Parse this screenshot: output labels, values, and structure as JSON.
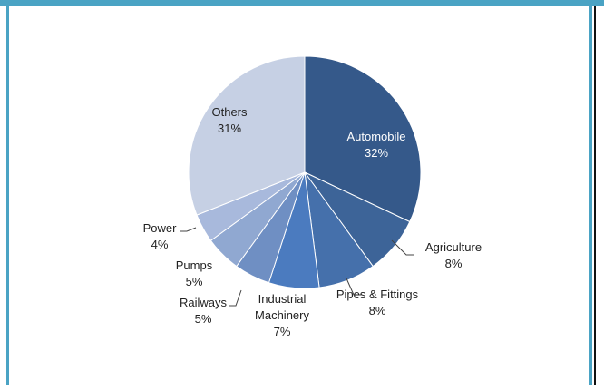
{
  "chart_data": {
    "type": "pie",
    "title": "",
    "slices": [
      {
        "label": "Automobile",
        "value": 32,
        "display": "32%",
        "color": "#35598a"
      },
      {
        "label": "Agriculture",
        "value": 8,
        "display": "8%",
        "color": "#3d6498"
      },
      {
        "label": "Pipes & Fittings",
        "value": 8,
        "display": "8%",
        "color": "#4570ab"
      },
      {
        "label": "Industrial Machinery",
        "value": 7,
        "display": "7%",
        "color": "#4b7bbf"
      },
      {
        "label": "Railways",
        "value": 5,
        "display": "5%",
        "color": "#6f8fc3"
      },
      {
        "label": "Pumps",
        "value": 5,
        "display": "5%",
        "color": "#90a8d1"
      },
      {
        "label": "Power",
        "value": 4,
        "display": "4%",
        "color": "#a8b9dc"
      },
      {
        "label": "Others",
        "value": 31,
        "display": "31%",
        "color": "#c6d0e4"
      }
    ],
    "colors": {
      "frame": "#4aa3c4",
      "edge": "#111111"
    }
  }
}
